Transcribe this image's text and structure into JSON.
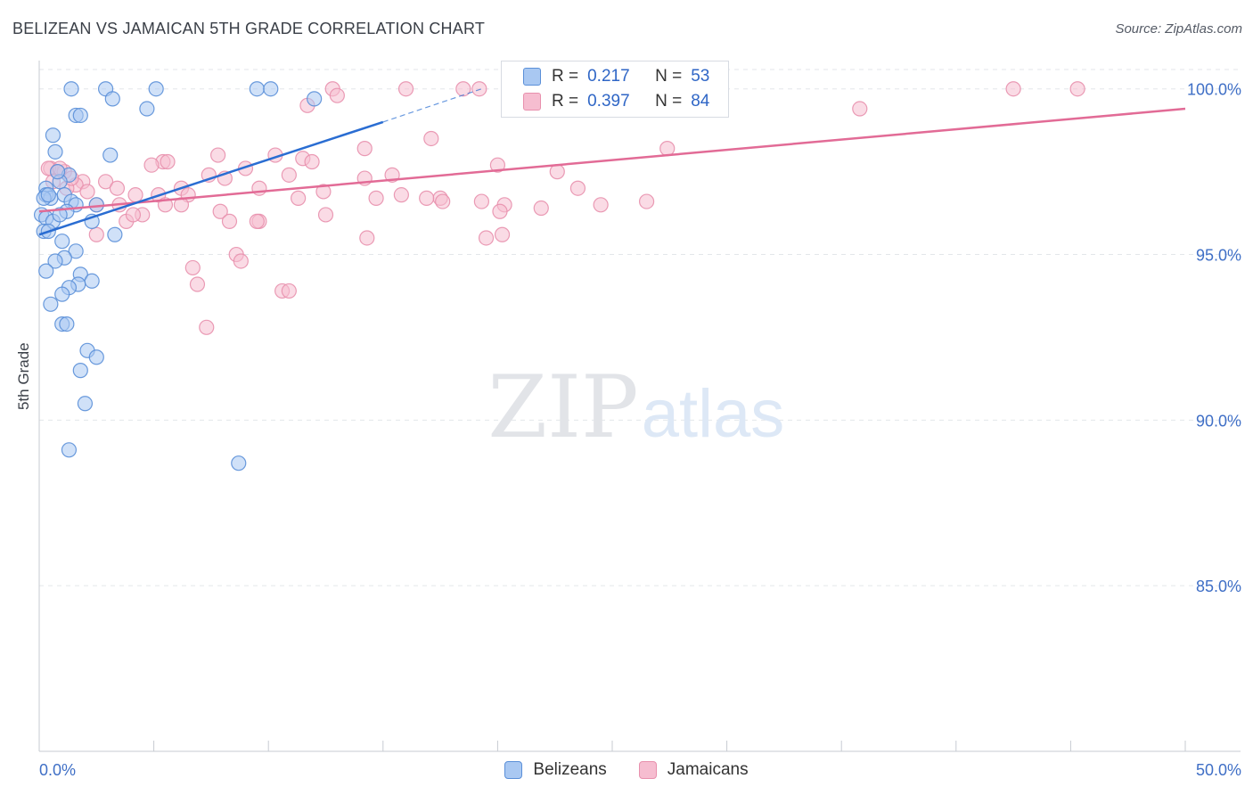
{
  "title": "BELIZEAN VS JAMAICAN 5TH GRADE CORRELATION CHART",
  "source": "Source: ZipAtlas.com",
  "watermark": {
    "zip": "ZIP",
    "atlas": "atlas"
  },
  "legend": {
    "r_label": "R =",
    "n_label": "N =",
    "rows": [
      {
        "r": "0.217",
        "n": "53"
      },
      {
        "r": "0.397",
        "n": "84"
      }
    ]
  },
  "colors": {
    "blue_fill": "#a9c8f2",
    "blue_stroke": "#5a8fd8",
    "blue_line": "#2a6dd2",
    "pink_fill": "#f6bdd0",
    "pink_stroke": "#e890ad",
    "pink_line": "#e26b96",
    "tick_text": "#3f6fc6",
    "grid": "#e3e6ea"
  },
  "chart_data": {
    "type": "scatter",
    "title": "BELIZEAN VS JAMAICAN 5TH GRADE CORRELATION CHART",
    "xlabel": "",
    "ylabel": "5th Grade",
    "xlim": [
      0,
      50
    ],
    "ylim": [
      80,
      100.8
    ],
    "x_tick_labels": [
      "0.0%",
      "50.0%"
    ],
    "y_ticks": [
      85,
      90,
      95,
      100
    ],
    "y_tick_labels": [
      "85.0%",
      "90.0%",
      "95.0%",
      "100.0%"
    ],
    "series": [
      {
        "name": "Belizeans",
        "r": 0.217,
        "n": 53,
        "trend": {
          "x0": 0,
          "y0": 95.6,
          "x1": 15,
          "y1": 99.0,
          "dashed_to_x": 19.3,
          "dashed_to_y": 100.0
        },
        "points": [
          [
            1.4,
            100
          ],
          [
            2.9,
            100
          ],
          [
            5.1,
            100
          ],
          [
            9.5,
            100
          ],
          [
            10.1,
            100
          ],
          [
            3.2,
            99.7
          ],
          [
            12.0,
            99.7
          ],
          [
            4.7,
            99.4
          ],
          [
            1.6,
            99.2
          ],
          [
            1.8,
            99.2
          ],
          [
            0.6,
            98.6
          ],
          [
            0.7,
            98.1
          ],
          [
            3.1,
            98.0
          ],
          [
            1.3,
            97.4
          ],
          [
            0.9,
            97.2
          ],
          [
            0.3,
            97.0
          ],
          [
            0.3,
            96.8
          ],
          [
            0.5,
            96.7
          ],
          [
            0.2,
            96.7
          ],
          [
            1.1,
            96.8
          ],
          [
            1.4,
            96.6
          ],
          [
            1.6,
            96.5
          ],
          [
            2.5,
            96.5
          ],
          [
            1.2,
            96.3
          ],
          [
            0.1,
            96.2
          ],
          [
            0.3,
            96.1
          ],
          [
            0.6,
            96.0
          ],
          [
            2.3,
            96.0
          ],
          [
            0.2,
            95.7
          ],
          [
            0.4,
            95.7
          ],
          [
            3.3,
            95.6
          ],
          [
            1.0,
            95.4
          ],
          [
            1.6,
            95.1
          ],
          [
            1.1,
            94.9
          ],
          [
            0.7,
            94.8
          ],
          [
            0.3,
            94.5
          ],
          [
            1.8,
            94.4
          ],
          [
            2.3,
            94.2
          ],
          [
            1.7,
            94.1
          ],
          [
            1.3,
            94.0
          ],
          [
            1.0,
            93.8
          ],
          [
            0.5,
            93.5
          ],
          [
            1.0,
            92.9
          ],
          [
            1.2,
            92.9
          ],
          [
            2.1,
            92.1
          ],
          [
            2.5,
            91.9
          ],
          [
            1.8,
            91.5
          ],
          [
            2.0,
            90.5
          ],
          [
            1.3,
            89.1
          ],
          [
            8.7,
            88.7
          ],
          [
            0.8,
            97.5
          ],
          [
            0.9,
            96.2
          ],
          [
            0.4,
            96.8
          ]
        ]
      },
      {
        "name": "Jamaicans",
        "r": 0.397,
        "n": 84,
        "trend": {
          "x0": 0,
          "y0": 96.3,
          "x1": 50,
          "y1": 99.4
        },
        "points": [
          [
            12.8,
            100
          ],
          [
            16.0,
            100
          ],
          [
            19.2,
            100
          ],
          [
            26.5,
            100
          ],
          [
            42.5,
            100
          ],
          [
            45.3,
            100
          ],
          [
            13.0,
            99.8
          ],
          [
            11.7,
            99.5
          ],
          [
            35.8,
            99.4
          ],
          [
            17.1,
            98.5
          ],
          [
            14.2,
            98.2
          ],
          [
            27.4,
            98.2
          ],
          [
            7.8,
            98.0
          ],
          [
            10.3,
            98.0
          ],
          [
            11.5,
            97.9
          ],
          [
            11.9,
            97.8
          ],
          [
            5.4,
            97.8
          ],
          [
            5.6,
            97.8
          ],
          [
            4.9,
            97.7
          ],
          [
            20.0,
            97.7
          ],
          [
            0.5,
            97.6
          ],
          [
            0.8,
            97.5
          ],
          [
            1.1,
            97.5
          ],
          [
            9.0,
            97.6
          ],
          [
            22.6,
            97.5
          ],
          [
            7.4,
            97.4
          ],
          [
            10.9,
            97.4
          ],
          [
            15.4,
            97.4
          ],
          [
            8.1,
            97.3
          ],
          [
            14.2,
            97.3
          ],
          [
            0.6,
            97.2
          ],
          [
            1.9,
            97.2
          ],
          [
            2.9,
            97.2
          ],
          [
            1.6,
            97.1
          ],
          [
            1.2,
            97.0
          ],
          [
            3.4,
            97.0
          ],
          [
            6.2,
            97.0
          ],
          [
            9.6,
            97.0
          ],
          [
            23.5,
            97.0
          ],
          [
            12.4,
            96.9
          ],
          [
            2.1,
            96.9
          ],
          [
            6.5,
            96.8
          ],
          [
            4.2,
            96.8
          ],
          [
            5.2,
            96.8
          ],
          [
            11.3,
            96.7
          ],
          [
            17.5,
            96.7
          ],
          [
            14.7,
            96.7
          ],
          [
            15.8,
            96.8
          ],
          [
            17.6,
            96.6
          ],
          [
            19.3,
            96.6
          ],
          [
            26.5,
            96.6
          ],
          [
            3.5,
            96.5
          ],
          [
            5.5,
            96.5
          ],
          [
            6.2,
            96.5
          ],
          [
            2.5,
            96.5
          ],
          [
            20.3,
            96.5
          ],
          [
            21.9,
            96.4
          ],
          [
            24.5,
            96.5
          ],
          [
            20.1,
            96.3
          ],
          [
            7.9,
            96.3
          ],
          [
            12.5,
            96.2
          ],
          [
            4.5,
            96.2
          ],
          [
            3.8,
            96.0
          ],
          [
            8.3,
            96.0
          ],
          [
            9.6,
            96.0
          ],
          [
            4.1,
            96.2
          ],
          [
            2.5,
            95.6
          ],
          [
            14.3,
            95.5
          ],
          [
            19.5,
            95.5
          ],
          [
            20.2,
            95.6
          ],
          [
            8.6,
            95.0
          ],
          [
            8.8,
            94.8
          ],
          [
            6.7,
            94.6
          ],
          [
            6.9,
            94.1
          ],
          [
            10.6,
            93.9
          ],
          [
            10.9,
            93.9
          ],
          [
            7.3,
            92.8
          ],
          [
            9.5,
            96.0
          ],
          [
            18.5,
            100
          ],
          [
            0.4,
            97.6
          ],
          [
            16.9,
            96.7
          ],
          [
            28.1,
            100
          ],
          [
            1.4,
            97.3
          ],
          [
            0.9,
            97.6
          ]
        ]
      }
    ]
  }
}
